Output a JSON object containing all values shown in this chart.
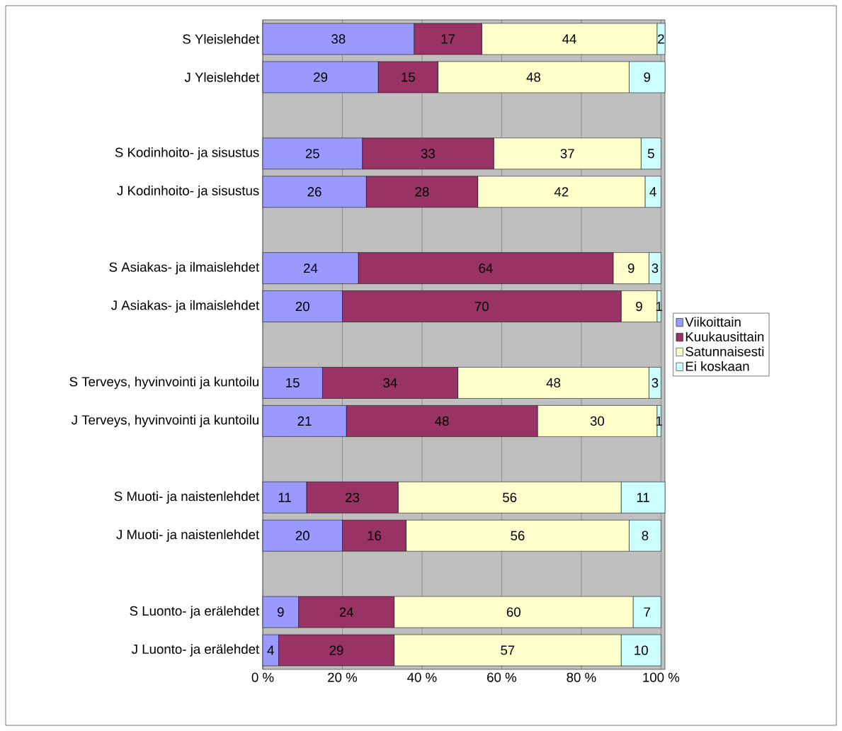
{
  "chart_data": {
    "type": "bar",
    "orientation": "horizontal",
    "stacked": true,
    "data_labels": true,
    "grid": "x",
    "legend": "right",
    "categories": [
      "S Yleislehdet",
      "J Yleislehdet",
      null,
      "S Kodinhoito- ja sisustus",
      "J Kodinhoito- ja sisustus",
      null,
      "S Asiakas- ja ilmaislehdet",
      "J Asiakas- ja ilmaislehdet",
      null,
      "S Terveys, hyvinvointi ja kuntoilu",
      "J Terveys, hyvinvointi ja kuntoilu",
      null,
      "S Muoti- ja naistenlehdet",
      "J Muoti- ja naistenlehdet",
      null,
      "S Luonto- ja erälehdet",
      "J Luonto- ja erälehdet"
    ],
    "series": [
      {
        "name": "Viikoittain",
        "color": "#9999ff",
        "values": [
          38,
          29,
          null,
          25,
          26,
          null,
          24,
          20,
          null,
          15,
          21,
          null,
          11,
          20,
          null,
          9,
          4
        ]
      },
      {
        "name": "Kuukausittain",
        "color": "#993366",
        "values": [
          17,
          15,
          null,
          33,
          28,
          null,
          64,
          70,
          null,
          34,
          48,
          null,
          23,
          16,
          null,
          24,
          29
        ]
      },
      {
        "name": "Satunnaisesti",
        "color": "#ffffcc",
        "values": [
          44,
          48,
          null,
          37,
          42,
          null,
          9,
          9,
          null,
          48,
          30,
          null,
          56,
          56,
          null,
          60,
          57
        ]
      },
      {
        "name": "Ei koskaan",
        "color": "#ccffff",
        "values": [
          2,
          9,
          null,
          5,
          4,
          null,
          3,
          1,
          null,
          3,
          1,
          null,
          11,
          8,
          null,
          7,
          10
        ]
      }
    ],
    "xlim": [
      0,
      101
    ],
    "xticks": [
      {
        "value": 0,
        "label": "0 %"
      },
      {
        "value": 20,
        "label": "20 %"
      },
      {
        "value": 40,
        "label": "40 %"
      },
      {
        "value": 60,
        "label": "60 %"
      },
      {
        "value": 80,
        "label": "80 %"
      },
      {
        "value": 100,
        "label": "100 %"
      }
    ]
  }
}
